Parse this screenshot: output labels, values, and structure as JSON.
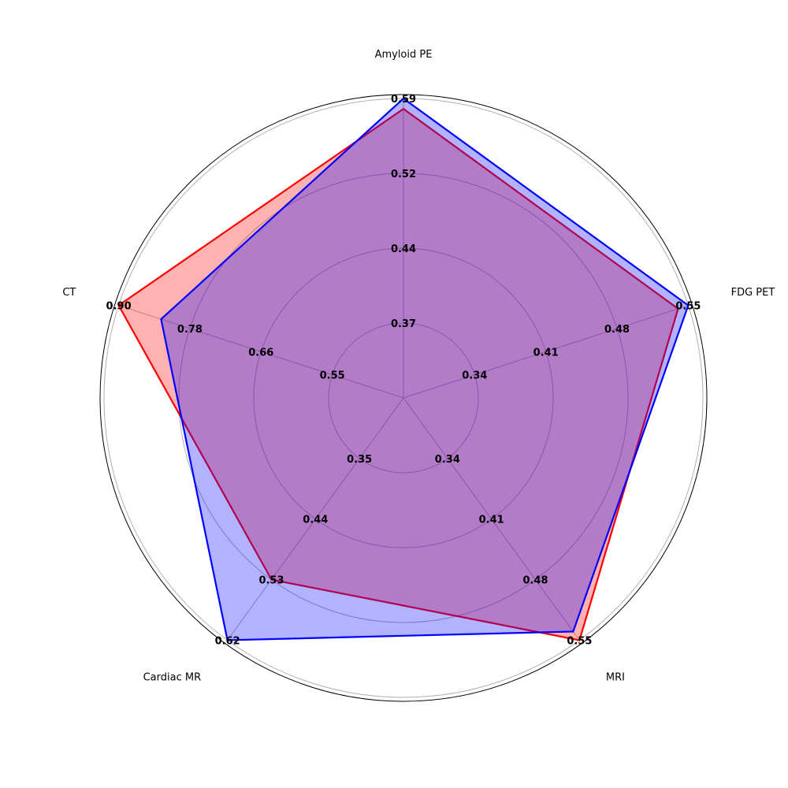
{
  "chart_data": {
    "type": "radar",
    "title": "",
    "categories": [
      "Amyloid PE",
      "FDG PET",
      "MRI",
      "Cardiac MR",
      "CT"
    ],
    "axis_ranges": [
      [
        0.3,
        0.59
      ],
      [
        0.27,
        0.55
      ],
      [
        0.27,
        0.55
      ],
      [
        0.26,
        0.62
      ],
      [
        0.43,
        0.9
      ]
    ],
    "tick_labels": [
      [
        "0.37",
        "0.44",
        "0.52",
        "0.59"
      ],
      [
        "0.34",
        "0.41",
        "0.48",
        "0.55"
      ],
      [
        "0.34",
        "0.41",
        "0.48",
        "0.55"
      ],
      [
        "0.35",
        "0.44",
        "0.53",
        "0.62"
      ],
      [
        "0.55",
        "0.66",
        "0.78",
        "0.90"
      ]
    ],
    "series": [
      {
        "values": [
          0.58,
          0.54,
          0.55,
          0.53,
          0.9
        ],
        "color": "#ff0000",
        "fill": "#ff0000"
      },
      {
        "values": [
          0.59,
          0.55,
          0.54,
          0.62,
          0.83
        ],
        "color": "#0000ff",
        "fill": "#0000ff"
      }
    ],
    "grid": true,
    "legend": "none"
  }
}
